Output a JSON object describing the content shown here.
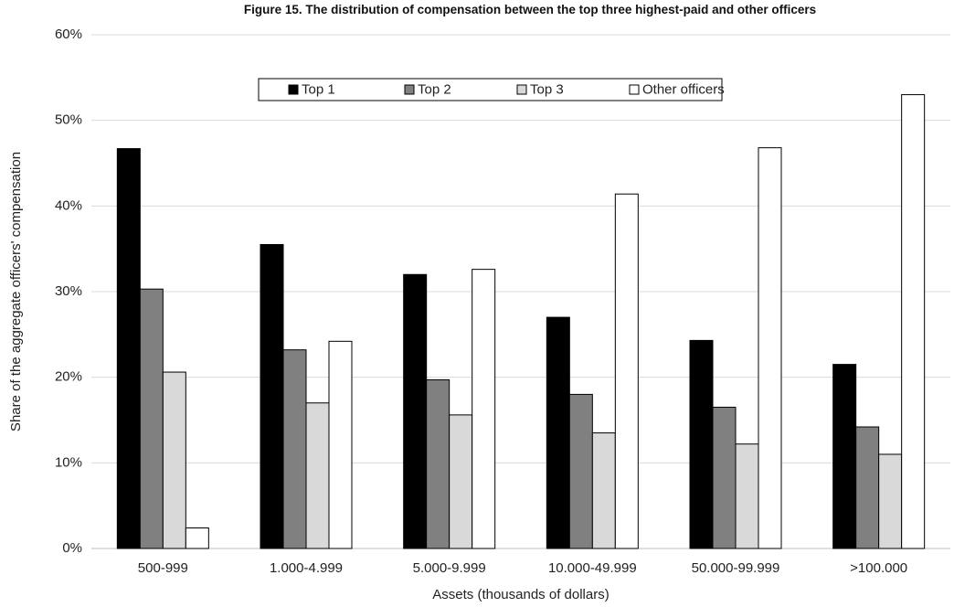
{
  "chart_data": {
    "type": "bar",
    "title": "Figure 15. The distribution of compensation between the top three highest-paid and other officers",
    "x_label": "Assets (thousands of dollars)",
    "y_label": "Share of the aggregate officers' compensation",
    "categories": [
      "500-999",
      "1.000-4.999",
      "5.000-9.999",
      "10.000-49.999",
      "50.000-99.999",
      ">100.000"
    ],
    "series": [
      {
        "name": "Top 1",
        "color": "#000000",
        "values": [
          46.7,
          35.5,
          32.0,
          27.0,
          24.3,
          21.5
        ]
      },
      {
        "name": "Top 2",
        "color": "#808080",
        "values": [
          30.3,
          23.2,
          19.7,
          18.0,
          16.5,
          14.2
        ]
      },
      {
        "name": "Top 3",
        "color": "#d9d9d9",
        "values": [
          20.6,
          17.0,
          15.6,
          13.5,
          12.2,
          11.0
        ]
      },
      {
        "name": "Other officers",
        "color": "#ffffff",
        "values": [
          2.4,
          24.2,
          32.6,
          41.4,
          46.8,
          53.0
        ]
      }
    ],
    "ylim": [
      0,
      60
    ],
    "yticks": [
      {
        "value": 0,
        "label": "0%"
      },
      {
        "value": 10,
        "label": "10%"
      },
      {
        "value": 20,
        "label": "20%"
      },
      {
        "value": 30,
        "label": "30%"
      },
      {
        "value": 40,
        "label": "40%"
      },
      {
        "value": 50,
        "label": "50%"
      },
      {
        "value": 60,
        "label": "60%"
      }
    ],
    "grid": true,
    "legend": "top"
  }
}
